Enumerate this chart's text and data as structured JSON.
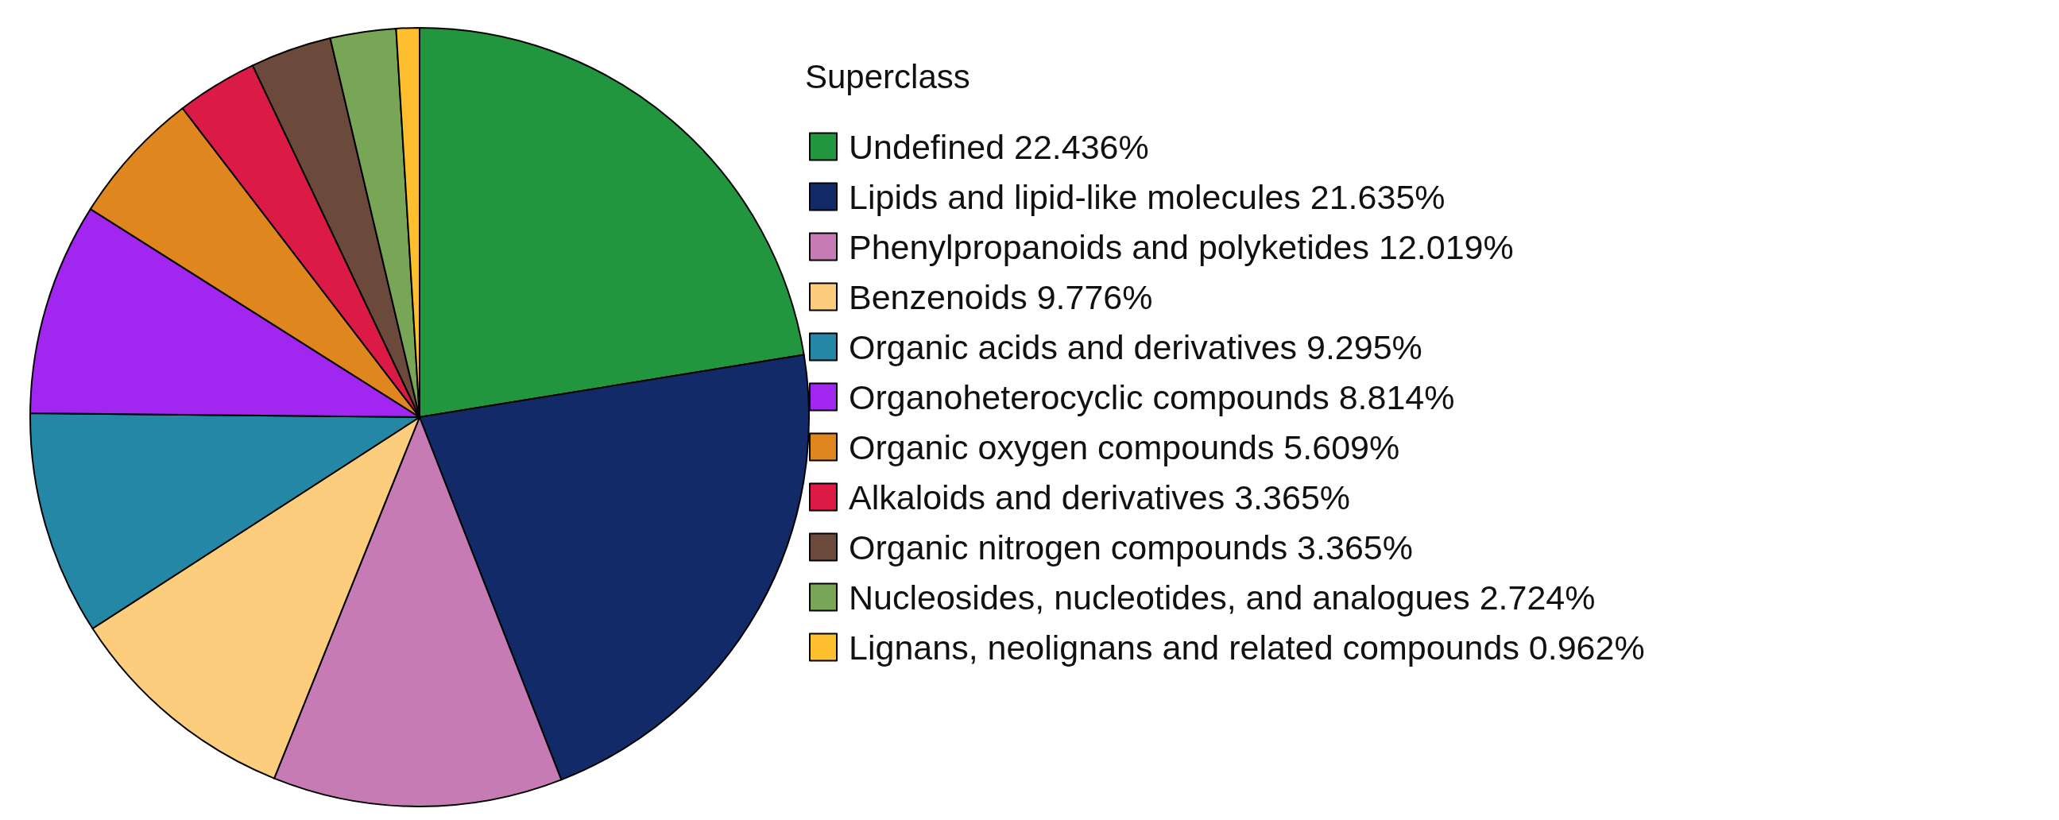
{
  "chart_data": {
    "type": "pie",
    "legend_title": "Superclass",
    "legend": "right",
    "categories": [
      "Undefined 22.436%",
      "Lipids and lipid-like molecules 21.635%",
      "Phenylpropanoids and polyketides 12.019%",
      "Benzenoids 9.776%",
      "Organic acids and derivatives 9.295%",
      "Organoheterocyclic compounds 8.814%",
      "Organic oxygen compounds 5.609%",
      "Alkaloids and derivatives 3.365%",
      "Organic nitrogen compounds 3.365%",
      "Nucleosides, nucleotides, and analogues 2.724%",
      "Lignans, neolignans and related compounds 0.962%"
    ],
    "values": [
      22.436,
      21.635,
      12.019,
      9.776,
      9.295,
      8.814,
      5.609,
      3.365,
      3.365,
      2.724,
      0.962
    ],
    "colors": [
      "#21963f",
      "#122b68",
      "#c67bb5",
      "#fdcd7e",
      "#2587a6",
      "#a126ef",
      "#e0861e",
      "#db1a46",
      "#6b4a3c",
      "#78a556",
      "#fdbf2d"
    ]
  }
}
